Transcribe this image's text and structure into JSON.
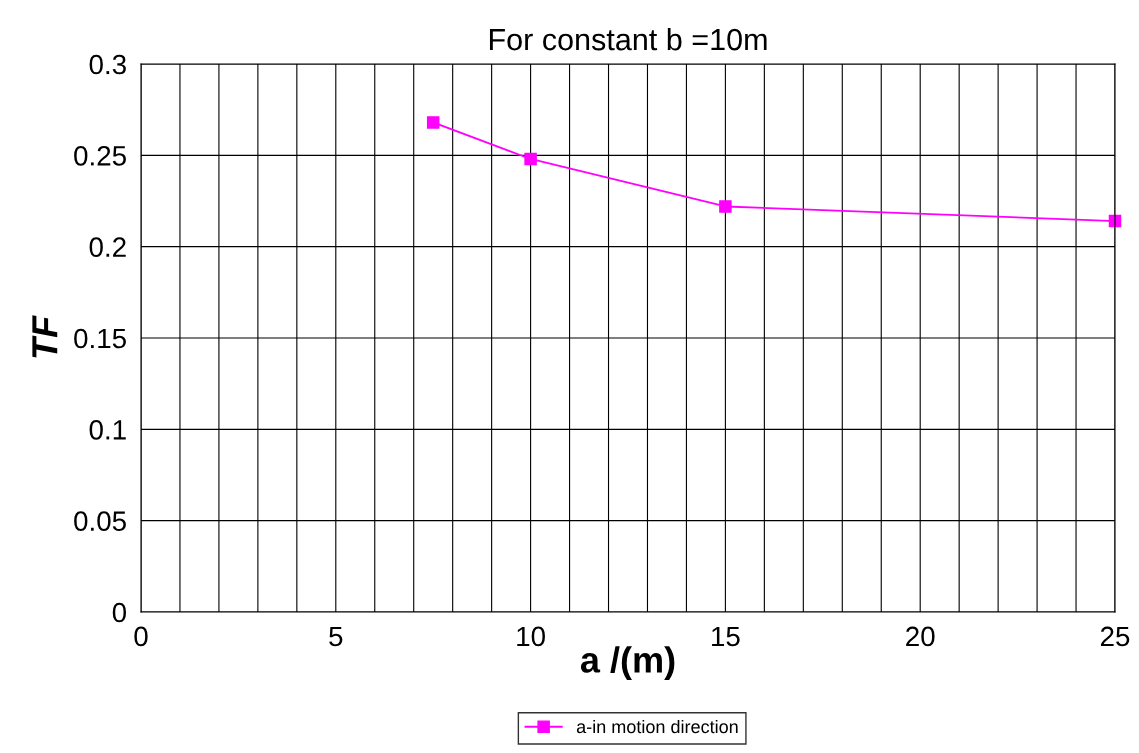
{
  "chart_data": {
    "type": "line",
    "title": "For constant b =10m",
    "xlabel": "a /(m)",
    "ylabel": "TF",
    "x": [
      7.5,
      10,
      15,
      25
    ],
    "series": [
      {
        "name": "a-in motion direction",
        "color": "#ff00ff",
        "values": [
          0.268,
          0.248,
          0.222,
          0.214
        ]
      }
    ],
    "xlim": [
      0,
      25
    ],
    "ylim": [
      0,
      0.3
    ],
    "xticks": [
      0,
      {
        "value": 1,
        "label": null
      },
      {
        "value": 2,
        "label": null
      },
      {
        "value": 3,
        "label": null
      },
      {
        "value": 4,
        "label": null
      },
      5,
      {
        "value": 6,
        "label": null
      },
      {
        "value": 7,
        "label": null
      },
      {
        "value": 8,
        "label": null
      },
      {
        "value": 9,
        "label": null
      },
      10,
      {
        "value": 11,
        "label": null
      },
      {
        "value": 12,
        "label": null
      },
      {
        "value": 13,
        "label": null
      },
      {
        "value": 14,
        "label": null
      },
      15,
      {
        "value": 16,
        "label": null
      },
      {
        "value": 17,
        "label": null
      },
      {
        "value": 18,
        "label": null
      },
      {
        "value": 19,
        "label": null
      },
      20,
      {
        "value": 21,
        "label": null
      },
      {
        "value": 22,
        "label": null
      },
      {
        "value": 23,
        "label": null
      },
      {
        "value": 24,
        "label": null
      },
      25
    ],
    "yticks": [
      0,
      0.05,
      0.1,
      0.15,
      0.2,
      0.25,
      0.3
    ],
    "grid": true,
    "legend": "bottom",
    "marker": "square",
    "line_style": "solid"
  }
}
